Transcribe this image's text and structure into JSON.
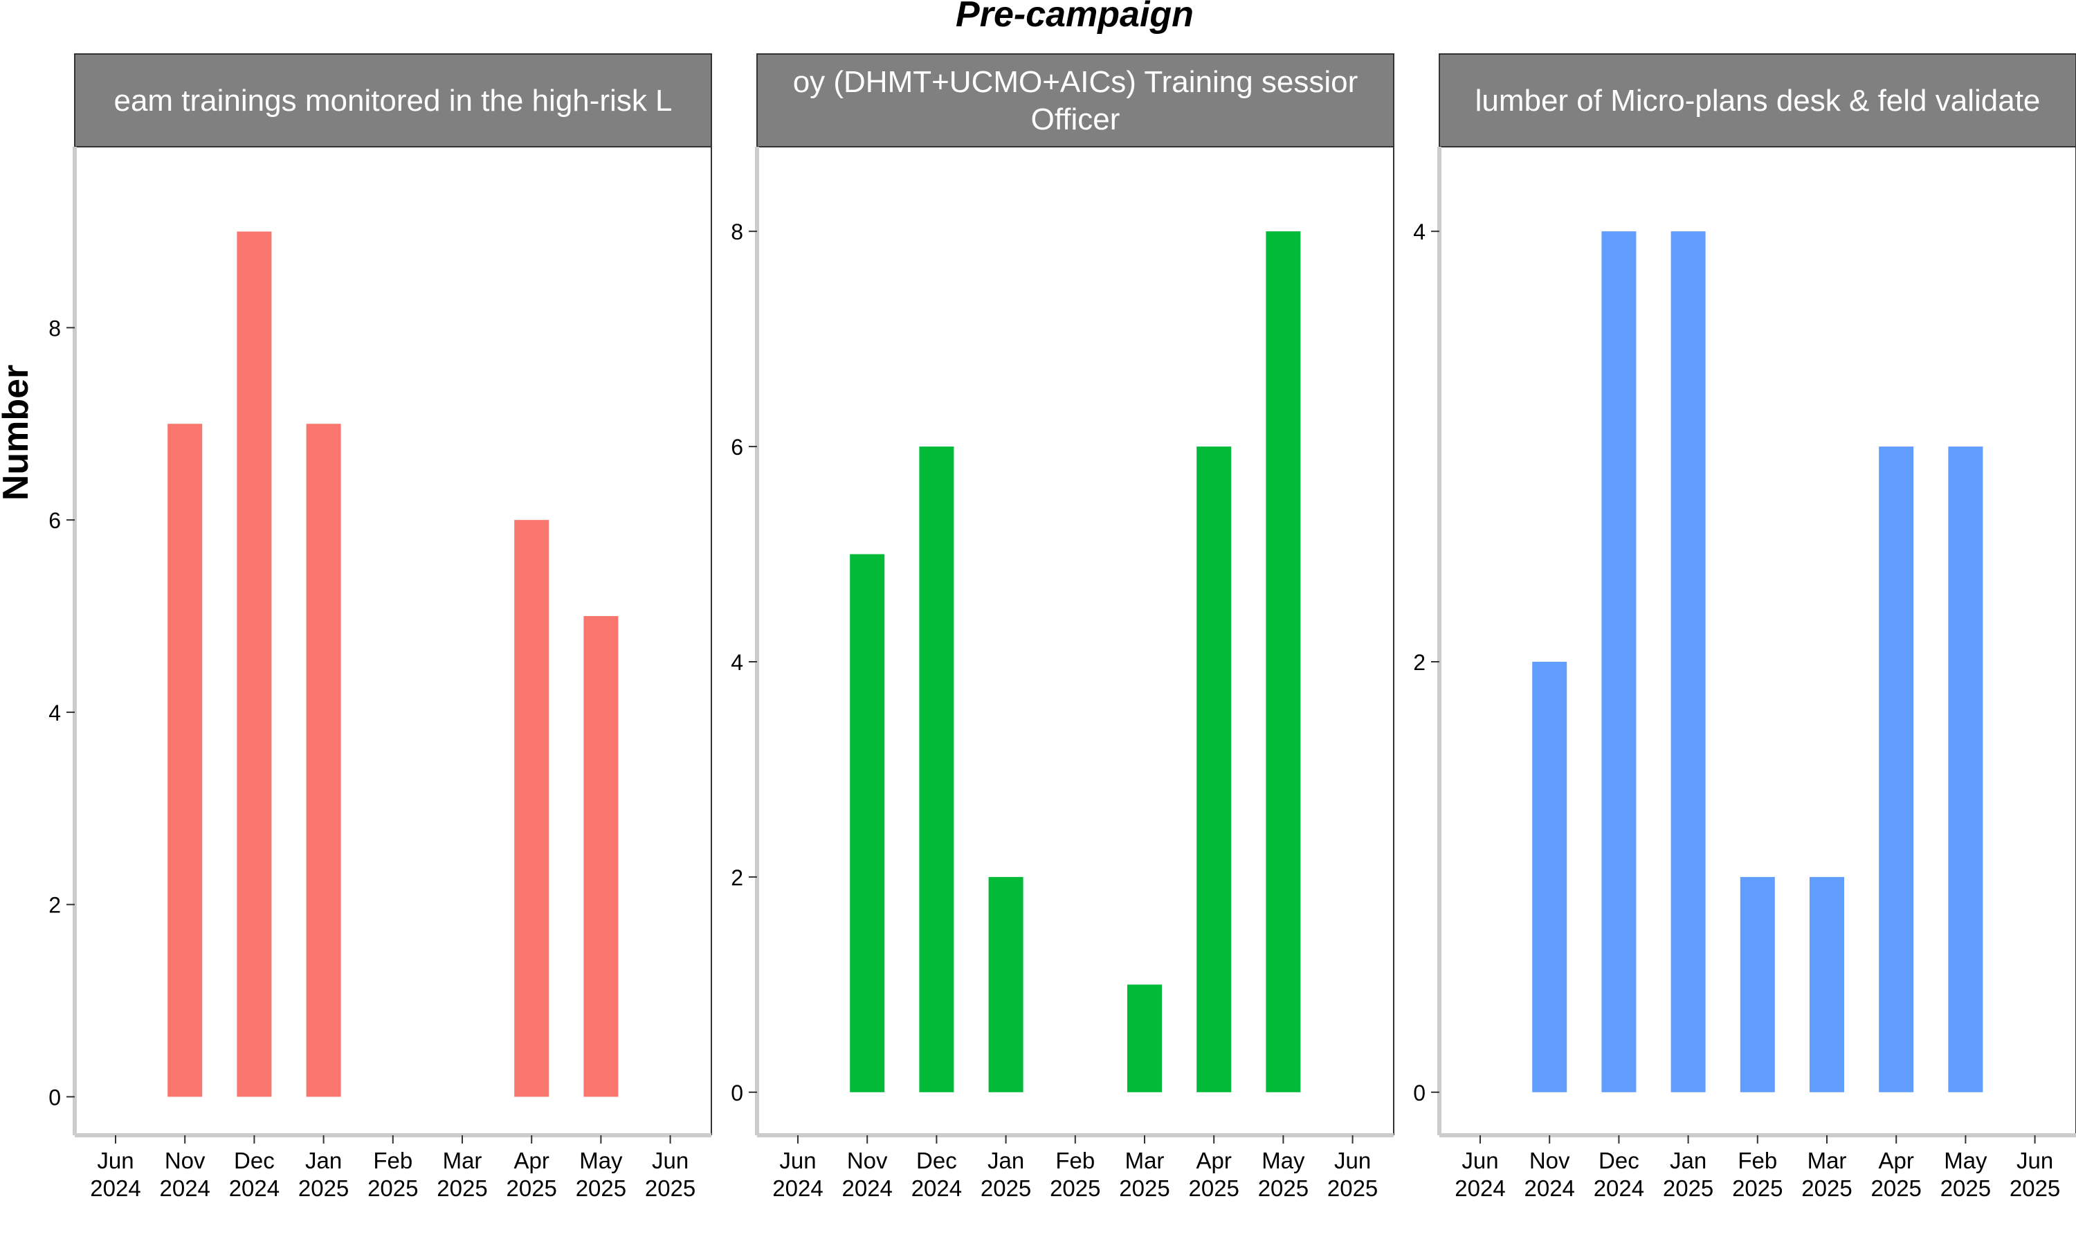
{
  "title": "Pre-campaign",
  "ylabel": "Number",
  "colors": {
    "strip_bg": "#808080",
    "axis": "#cccccc",
    "text": "#000000"
  },
  "x_ticks": [
    [
      "Jun",
      "2024"
    ],
    [
      "Nov",
      "2024"
    ],
    [
      "Dec",
      "2024"
    ],
    [
      "Jan",
      "2025"
    ],
    [
      "Feb",
      "2025"
    ],
    [
      "Mar",
      "2025"
    ],
    [
      "Apr",
      "2025"
    ],
    [
      "May",
      "2025"
    ],
    [
      "Jun",
      "2025"
    ]
  ],
  "chart_data": [
    {
      "type": "bar",
      "panel_title": [
        "eam trainings monitored in the high-risk L"
      ],
      "color": "#F8766D",
      "categories": [
        "Jun 2024",
        "Nov 2024",
        "Dec 2024",
        "Jan 2025",
        "Feb 2025",
        "Mar 2025",
        "Apr 2025",
        "May 2025",
        "Jun 2025"
      ],
      "values": [
        null,
        7,
        9,
        7,
        null,
        null,
        6,
        5,
        null
      ],
      "yticks": [
        0,
        2,
        4,
        6,
        8
      ],
      "ylim": [
        -0.4,
        9.45
      ]
    },
    {
      "type": "bar",
      "panel_title": [
        "oy (DHMT+UCMO+AICs) Training sessior",
        "Officer"
      ],
      "color": "#00BA38",
      "categories": [
        "Jun 2024",
        "Nov 2024",
        "Dec 2024",
        "Jan 2025",
        "Feb 2025",
        "Mar 2025",
        "Apr 2025",
        "May 2025",
        "Jun 2025"
      ],
      "values": [
        null,
        5,
        6,
        2,
        null,
        1,
        6,
        8,
        null
      ],
      "yticks": [
        0,
        2,
        4,
        6,
        8
      ],
      "ylim": [
        -0.4,
        8.4
      ]
    },
    {
      "type": "bar",
      "panel_title": [
        "lumber of Micro-plans desk & feld validate"
      ],
      "color": "#619CFF",
      "categories": [
        "Jun 2024",
        "Nov 2024",
        "Dec 2024",
        "Jan 2025",
        "Feb 2025",
        "Mar 2025",
        "Apr 2025",
        "May 2025",
        "Jun 2025"
      ],
      "values": [
        null,
        2,
        4,
        4,
        1,
        1,
        3,
        3,
        null
      ],
      "yticks": [
        0,
        2,
        4
      ],
      "ylim": [
        -0.2,
        4.2
      ]
    }
  ]
}
